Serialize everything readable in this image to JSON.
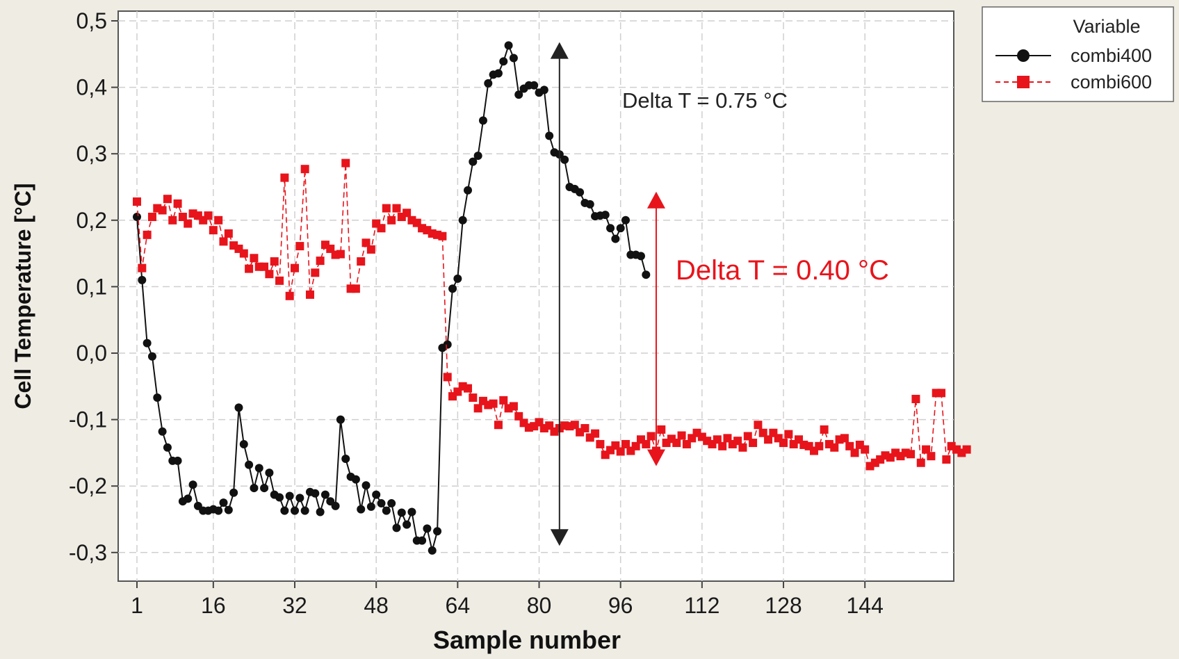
{
  "chart_data": {
    "type": "line",
    "xlabel": "Sample number",
    "ylabel": "Cell Temperature [°C]",
    "xlim": [
      1,
      164
    ],
    "ylim": [
      -0.33,
      0.5
    ],
    "grid": true,
    "x_ticks": [
      1,
      16,
      32,
      48,
      64,
      80,
      96,
      112,
      128,
      144
    ],
    "x_tick_labels": [
      "1",
      "16",
      "32",
      "48",
      "64",
      "80",
      "96",
      "112",
      "128",
      "144"
    ],
    "y_ticks": [
      -0.3,
      -0.2,
      -0.1,
      0.0,
      0.1,
      0.2,
      0.3,
      0.4,
      0.5
    ],
    "y_tick_labels": [
      "-0,3",
      "-0,2",
      "-0,1",
      "0,0",
      "0,1",
      "0,2",
      "0,3",
      "0,4",
      "0,5"
    ],
    "legend": {
      "title": "Variable",
      "placement": "top-right outside",
      "entries": [
        "combi400",
        "combi600"
      ]
    },
    "series": [
      {
        "name": "combi400",
        "color": "#111111",
        "marker": "circle",
        "line_style": "solid",
        "x": [
          1,
          2,
          3,
          4,
          5,
          6,
          7,
          8,
          9,
          10,
          11,
          12,
          13,
          14,
          15,
          16,
          17,
          18,
          19,
          20,
          21,
          22,
          23,
          24,
          25,
          26,
          27,
          28,
          29,
          30,
          31,
          32,
          33,
          34,
          35,
          36,
          37,
          38,
          39,
          40,
          41,
          42,
          43,
          44,
          45,
          46,
          47,
          48,
          49,
          50,
          51,
          52,
          53,
          54,
          55,
          56,
          57,
          58,
          59,
          60,
          61,
          62,
          63,
          64,
          65,
          66,
          67,
          68,
          69,
          70,
          71,
          72,
          73,
          74,
          75,
          76,
          77,
          78,
          79,
          80,
          81,
          82,
          83,
          84,
          85,
          86,
          87,
          88,
          89,
          90,
          91,
          92,
          93,
          94,
          95,
          96,
          97,
          98,
          99,
          100,
          101
        ],
        "y": [
          0.205,
          0.11,
          0.015,
          -0.005,
          -0.067,
          -0.118,
          -0.142,
          -0.162,
          -0.162,
          -0.223,
          -0.219,
          -0.198,
          -0.23,
          -0.237,
          -0.237,
          -0.235,
          -0.237,
          -0.225,
          -0.236,
          -0.21,
          -0.082,
          -0.137,
          -0.168,
          -0.203,
          -0.173,
          -0.203,
          -0.18,
          -0.213,
          -0.217,
          -0.237,
          -0.215,
          -0.237,
          -0.218,
          -0.237,
          -0.209,
          -0.211,
          -0.239,
          -0.213,
          -0.223,
          -0.23,
          -0.1,
          -0.159,
          -0.186,
          -0.19,
          -0.235,
          -0.199,
          -0.231,
          -0.213,
          -0.226,
          -0.237,
          -0.226,
          -0.263,
          -0.24,
          -0.258,
          -0.239,
          -0.282,
          -0.282,
          -0.264,
          -0.297,
          -0.268,
          0.008,
          0.013,
          0.097,
          0.112,
          0.2,
          0.245,
          0.288,
          0.297,
          0.35,
          0.406,
          0.419,
          0.421,
          0.439,
          0.463,
          0.444,
          0.389,
          0.398,
          0.403,
          0.403,
          0.392,
          0.396,
          0.327,
          0.302,
          0.299,
          0.291,
          0.25,
          0.247,
          0.242,
          0.226,
          0.224,
          0.206,
          0.207,
          0.208,
          0.188,
          0.172,
          0.188,
          0.2,
          0.148,
          0.148,
          0.146,
          0.118
        ]
      },
      {
        "name": "combi600",
        "color": "#e8141b",
        "marker": "square",
        "line_style": "dashed",
        "x": [
          1,
          2,
          3,
          4,
          5,
          6,
          7,
          8,
          9,
          10,
          11,
          12,
          13,
          14,
          15,
          16,
          17,
          18,
          19,
          20,
          21,
          22,
          23,
          24,
          25,
          26,
          27,
          28,
          29,
          30,
          31,
          32,
          33,
          34,
          35,
          36,
          37,
          38,
          39,
          40,
          41,
          42,
          43,
          44,
          45,
          46,
          47,
          48,
          49,
          50,
          51,
          52,
          53,
          54,
          55,
          56,
          57,
          58,
          59,
          60,
          61,
          62,
          63,
          64,
          65,
          66,
          67,
          68,
          69,
          70,
          71,
          72,
          73,
          74,
          75,
          76,
          77,
          78,
          79,
          80,
          81,
          82,
          83,
          84,
          85,
          86,
          87,
          88,
          89,
          90,
          91,
          92,
          93,
          94,
          95,
          96,
          97,
          98,
          99,
          100,
          101,
          102,
          103,
          104,
          105,
          106,
          107,
          108,
          109,
          110,
          111,
          112,
          113,
          114,
          115,
          116,
          117,
          118,
          119,
          120,
          121,
          122,
          123,
          124,
          125,
          126,
          127,
          128,
          129,
          130,
          131,
          132,
          133,
          134,
          135,
          136,
          137,
          138,
          139,
          140,
          141,
          142,
          143,
          144,
          145,
          146,
          147,
          148,
          149,
          150,
          151,
          152,
          153,
          154,
          155,
          156,
          157,
          158,
          159,
          160,
          161,
          162,
          163,
          164
        ],
        "y": [
          0.228,
          0.128,
          0.178,
          0.205,
          0.218,
          0.215,
          0.232,
          0.2,
          0.225,
          0.205,
          0.195,
          0.21,
          0.207,
          0.2,
          0.207,
          0.185,
          0.2,
          0.168,
          0.18,
          0.162,
          0.157,
          0.15,
          0.127,
          0.143,
          0.13,
          0.13,
          0.119,
          0.138,
          0.109,
          0.264,
          0.086,
          0.128,
          0.161,
          0.277,
          0.088,
          0.121,
          0.139,
          0.163,
          0.157,
          0.148,
          0.149,
          0.286,
          0.097,
          0.097,
          0.138,
          0.166,
          0.156,
          0.195,
          0.188,
          0.218,
          0.2,
          0.218,
          0.205,
          0.211,
          0.2,
          0.196,
          0.188,
          0.185,
          0.18,
          0.178,
          0.176,
          -0.036,
          -0.065,
          -0.058,
          -0.05,
          -0.053,
          -0.067,
          -0.083,
          -0.072,
          -0.078,
          -0.076,
          -0.108,
          -0.071,
          -0.083,
          -0.08,
          -0.095,
          -0.105,
          -0.112,
          -0.11,
          -0.104,
          -0.113,
          -0.109,
          -0.118,
          -0.113,
          -0.109,
          -0.11,
          -0.108,
          -0.119,
          -0.113,
          -0.127,
          -0.121,
          -0.137,
          -0.153,
          -0.146,
          -0.139,
          -0.148,
          -0.137,
          -0.147,
          -0.14,
          -0.13,
          -0.137,
          -0.125,
          -0.147,
          -0.115,
          -0.135,
          -0.129,
          -0.135,
          -0.124,
          -0.137,
          -0.128,
          -0.12,
          -0.126,
          -0.132,
          -0.137,
          -0.13,
          -0.14,
          -0.128,
          -0.137,
          -0.132,
          -0.142,
          -0.125,
          -0.135,
          -0.108,
          -0.12,
          -0.13,
          -0.12,
          -0.128,
          -0.135,
          -0.122,
          -0.137,
          -0.13,
          -0.138,
          -0.14,
          -0.147,
          -0.14,
          -0.115,
          -0.137,
          -0.142,
          -0.13,
          -0.128,
          -0.14,
          -0.15,
          -0.138,
          -0.145,
          -0.17,
          -0.165,
          -0.16,
          -0.154,
          -0.157,
          -0.15,
          -0.155,
          -0.15,
          -0.152,
          -0.069,
          -0.165,
          -0.145,
          -0.155,
          -0.06,
          -0.06,
          -0.16,
          -0.14,
          -0.145,
          -0.15,
          -0.145
        ]
      }
    ],
    "annotations": [
      {
        "text": "Delta T = 0.75 °C",
        "color": "#222222",
        "arrow": {
          "x": 84,
          "y_top": 0.468,
          "y_bottom": -0.29,
          "heads": "both"
        }
      },
      {
        "text": "Delta T = 0.40 °C",
        "color": "#e8141b",
        "arrow": {
          "x": 103,
          "y_top": 0.243,
          "y_bottom": -0.17,
          "heads": "both"
        }
      }
    ]
  }
}
